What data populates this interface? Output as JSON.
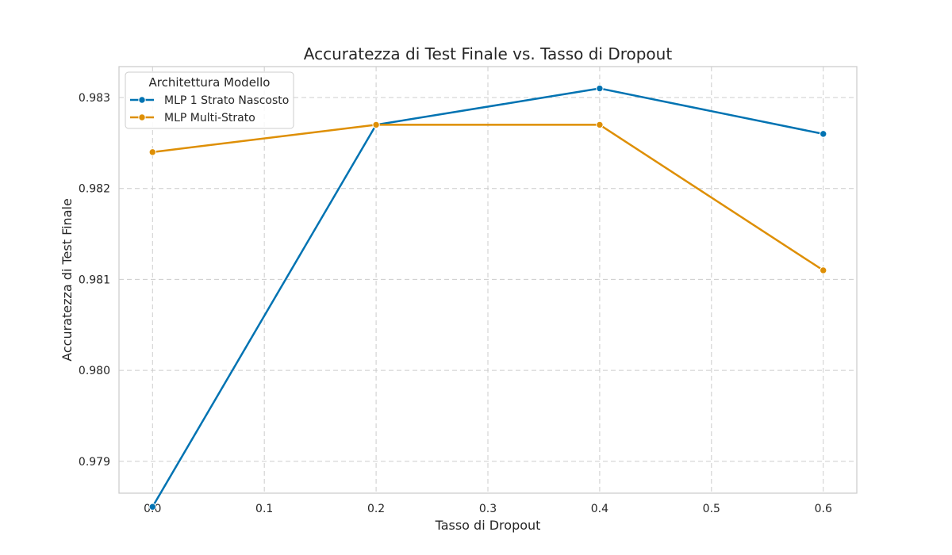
{
  "chart_data": {
    "type": "line",
    "title": "Accuratezza di Test Finale vs. Tasso di Dropout",
    "xlabel": "Tasso di Dropout",
    "ylabel": "Accuratezza di Test Finale",
    "xlim": [
      -0.03,
      0.63
    ],
    "ylim": [
      0.97865,
      0.98334
    ],
    "xticks": [
      0.0,
      0.1,
      0.2,
      0.3,
      0.4,
      0.5,
      0.6
    ],
    "xtick_labels": [
      "0.0",
      "0.1",
      "0.2",
      "0.3",
      "0.4",
      "0.5",
      "0.6"
    ],
    "yticks": [
      0.979,
      0.98,
      0.981,
      0.982,
      0.983
    ],
    "ytick_labels": [
      "0.979",
      "0.980",
      "0.981",
      "0.982",
      "0.983"
    ],
    "grid": true,
    "legend": {
      "title": "Architettura Modello",
      "placement": "top-left"
    },
    "x": [
      0.0,
      0.2,
      0.4,
      0.6
    ],
    "series": [
      {
        "name": "MLP 1 Strato Nascosto",
        "color": "#0173b2",
        "values": [
          0.9785,
          0.9827,
          0.9831,
          0.9826
        ]
      },
      {
        "name": "MLP Multi-Strato",
        "color": "#de8f05",
        "values": [
          0.9824,
          0.9827,
          0.9827,
          0.9811
        ]
      }
    ]
  }
}
